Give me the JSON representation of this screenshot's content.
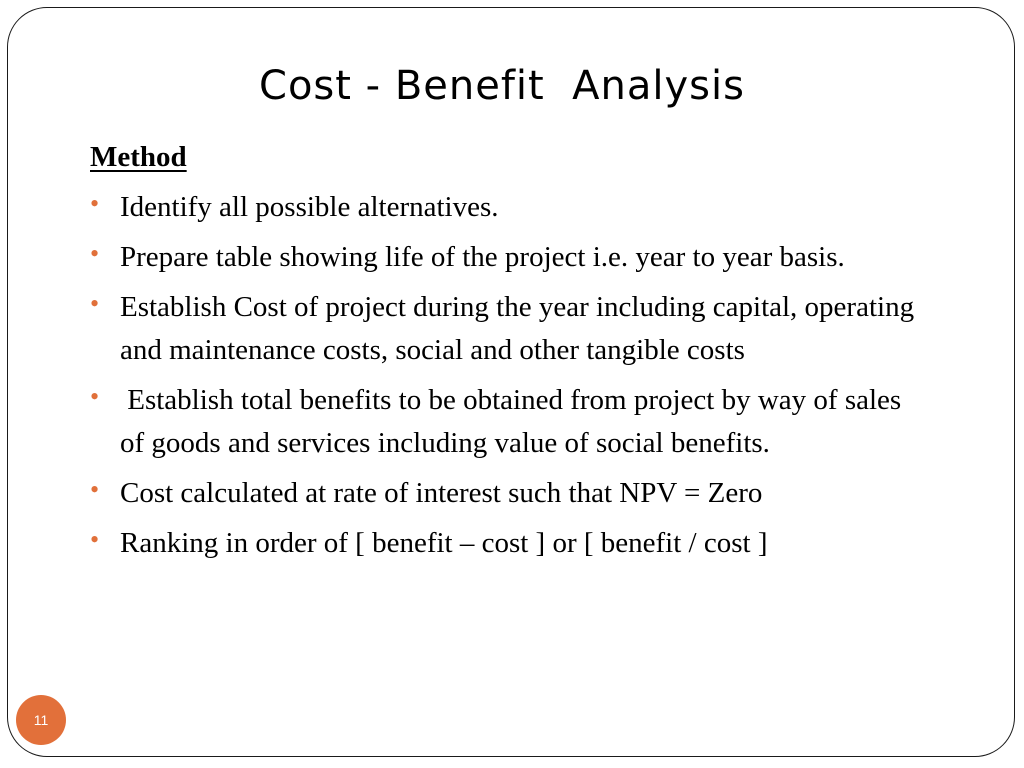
{
  "slide": {
    "title": "Cost - Benefit  Analysis",
    "section_heading": "Method",
    "bullets": [
      {
        "text": "Identify all possible alternatives."
      },
      {
        "text": "Prepare table showing life of the project i.e. year to year basis."
      },
      {
        "text": "Establish Cost of project during the year including capital, operating and maintenance costs, social and other tangible costs"
      },
      {
        "text": " Establish total benefits to be obtained from project by way of sales of goods and services including value of social benefits."
      },
      {
        "text": "Cost calculated at rate of interest such that NPV = Zero"
      },
      {
        "text": "Ranking in order of [ benefit – cost ] or [ benefit / cost ]"
      }
    ],
    "bullet_glyph": "•",
    "page_number": "11"
  },
  "colors": {
    "accent": "#e2703a",
    "text": "#000000",
    "frame": "#1a1a1a"
  }
}
